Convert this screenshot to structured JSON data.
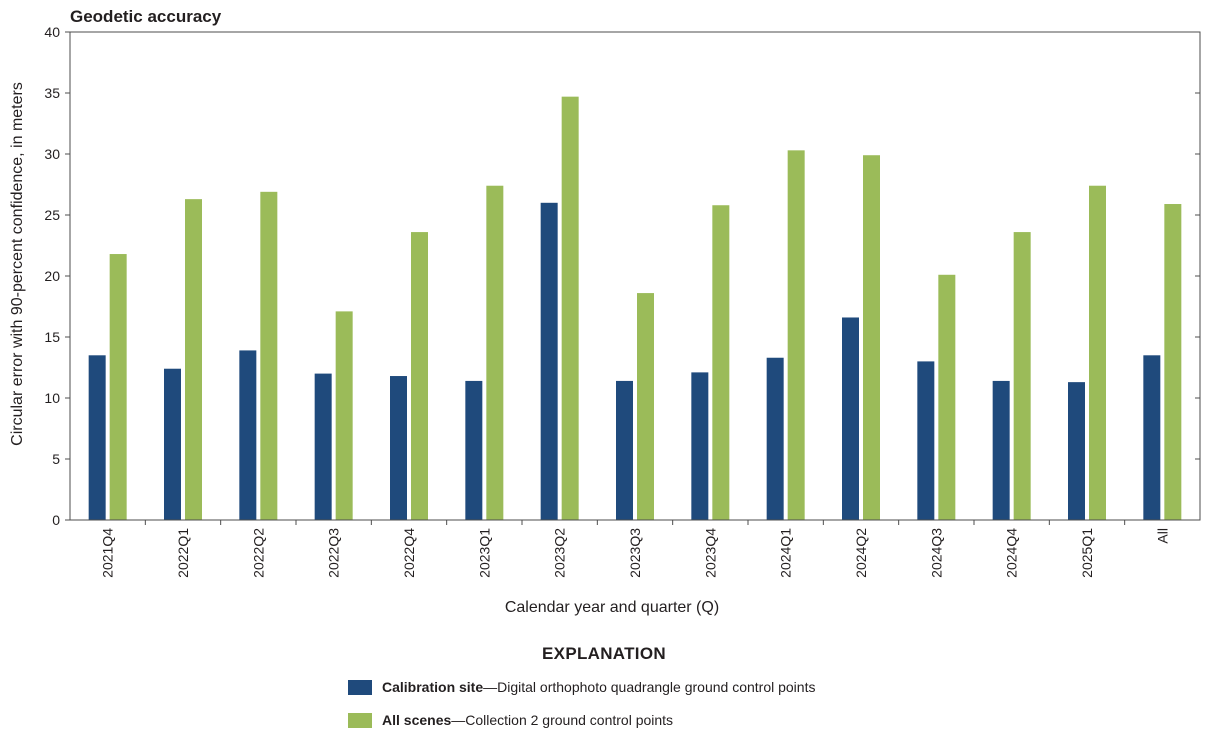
{
  "chart_data": {
    "type": "bar",
    "title": "Geodetic accuracy",
    "xlabel": "Calendar year and quarter (Q)",
    "ylabel": "Circular error with 90-percent confidence, in meters",
    "ylim": [
      0,
      40
    ],
    "yticks": [
      0,
      5,
      10,
      15,
      20,
      25,
      30,
      35,
      40
    ],
    "categories": [
      "2021Q4",
      "2022Q1",
      "2022Q2",
      "2022Q3",
      "2022Q4",
      "2023Q1",
      "2023Q2",
      "2023Q3",
      "2023Q4",
      "2024Q1",
      "2024Q2",
      "2024Q3",
      "2024Q4",
      "2025Q1",
      "All"
    ],
    "series": [
      {
        "name": "Calibration site",
        "description": "Digital orthophoto quadrangle ground control points",
        "color": "#1f4a7c",
        "values": [
          13.5,
          12.4,
          13.9,
          12.0,
          11.8,
          11.4,
          26.0,
          11.4,
          12.1,
          13.3,
          16.6,
          13.0,
          11.4,
          11.3,
          13.5
        ]
      },
      {
        "name": "All scenes",
        "description": "Collection 2 ground control points",
        "color": "#9bbb59",
        "values": [
          21.8,
          26.3,
          26.9,
          17.1,
          23.6,
          27.4,
          34.7,
          18.6,
          25.8,
          30.3,
          29.9,
          20.1,
          23.6,
          27.4,
          25.9
        ]
      }
    ],
    "legend_title": "EXPLANATION",
    "legend_separator": "—",
    "legend_position": "bottom-center",
    "grid": false
  }
}
